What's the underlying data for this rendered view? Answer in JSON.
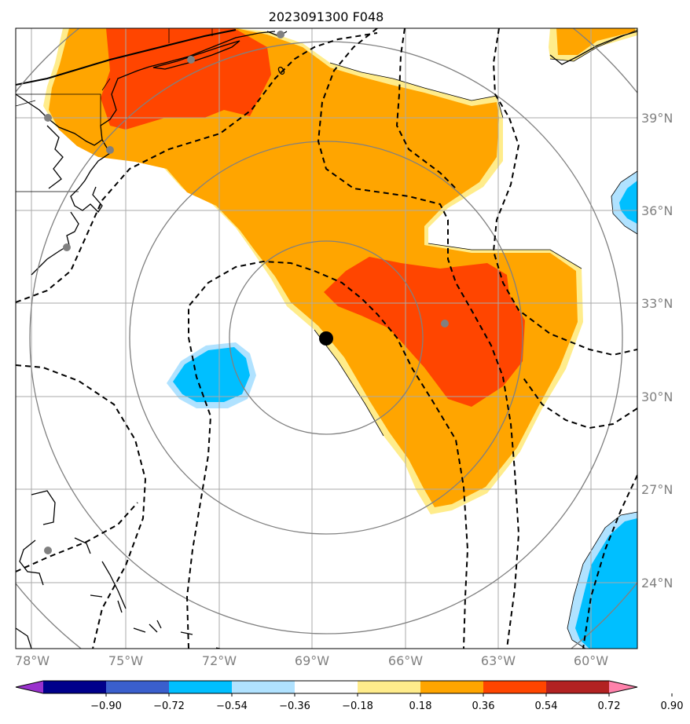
{
  "title": "2023091300 F048",
  "map": {
    "lat_labels": [
      "39°N",
      "36°N",
      "33°N",
      "30°N",
      "27°N",
      "24°N"
    ],
    "lon_labels": [
      "78°W",
      "75°W",
      "72°W",
      "69°W",
      "66°W",
      "63°W",
      "60°W"
    ],
    "contour_label": "0",
    "grid_color": "#aaaaaa",
    "ring_color": "#808080",
    "storm_center_marker": "black-dot",
    "station_marker_color": "#808080"
  },
  "colorbar": {
    "tick_labels": [
      "−0.90",
      "−0.72",
      "−0.54",
      "−0.36",
      "−0.18",
      "0.18",
      "0.36",
      "0.54",
      "0.72",
      "0.90"
    ],
    "colors": [
      "#9a32cd",
      "#00008b",
      "#3a5fcd",
      "#00bfff",
      "#b0e2ff",
      "#ffffff",
      "#ffec8b",
      "#ffa500",
      "#ff4500",
      "#b22222",
      "#ff82ab"
    ],
    "extend": "both"
  }
}
